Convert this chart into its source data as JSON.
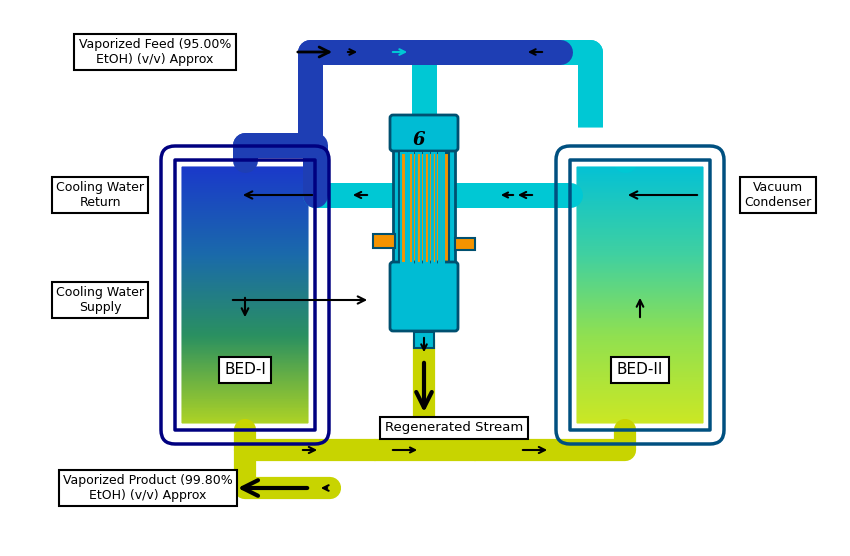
{
  "bg": "#ffffff",
  "blue_pipe": "#1e3eb4",
  "cyan_pipe": "#00c8d4",
  "yellow_pipe": "#c8d400",
  "hx_shell": "#00bcd4",
  "hx_tube": "#f59300",
  "hx_outline": "#005070",
  "vessel1_colors": [
    "#1a35cc",
    "#1a6aaa",
    "#2a9060",
    "#b8d820"
  ],
  "vessel2_colors": [
    "#00c0d8",
    "#40d0a0",
    "#90e050",
    "#d0e820"
  ],
  "vessel_outline": "#000080",
  "label_feed": "Vaporized Feed (95.00%\nEtOH) (v/v) Approx",
  "label_product": "Vaporized Product (99.80%\nEtOH) (v/v) Approx",
  "label_cwreturn": "Cooling Water\nReturn",
  "label_cwsupply": "Cooling Water\nSupply",
  "label_vacuum": "Vacuum\nCondenser",
  "label_regen": "Regenerated Stream",
  "label_bed1": "BED-I",
  "label_bed2": "BED-II"
}
